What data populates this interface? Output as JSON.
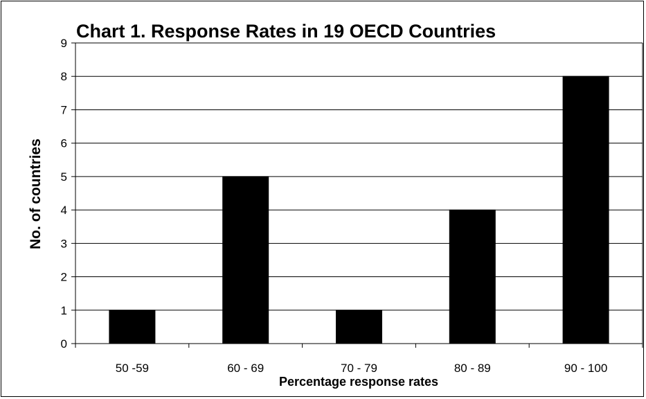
{
  "chart_data": {
    "type": "bar",
    "title": "Chart 1. Response Rates in 19 OECD Countries",
    "xlabel": "Percentage response rates",
    "ylabel": "No. of countries",
    "categories": [
      "50 -59",
      "60 - 69",
      "70 - 79",
      "80 - 89",
      "90 - 100"
    ],
    "values": [
      1,
      5,
      1,
      4,
      8
    ],
    "ylim": [
      0,
      9
    ],
    "yticks": [
      "0",
      "1",
      "2",
      "3",
      "4",
      "5",
      "6",
      "7",
      "8",
      "9"
    ],
    "grid": true,
    "bar_color": "#000000"
  }
}
